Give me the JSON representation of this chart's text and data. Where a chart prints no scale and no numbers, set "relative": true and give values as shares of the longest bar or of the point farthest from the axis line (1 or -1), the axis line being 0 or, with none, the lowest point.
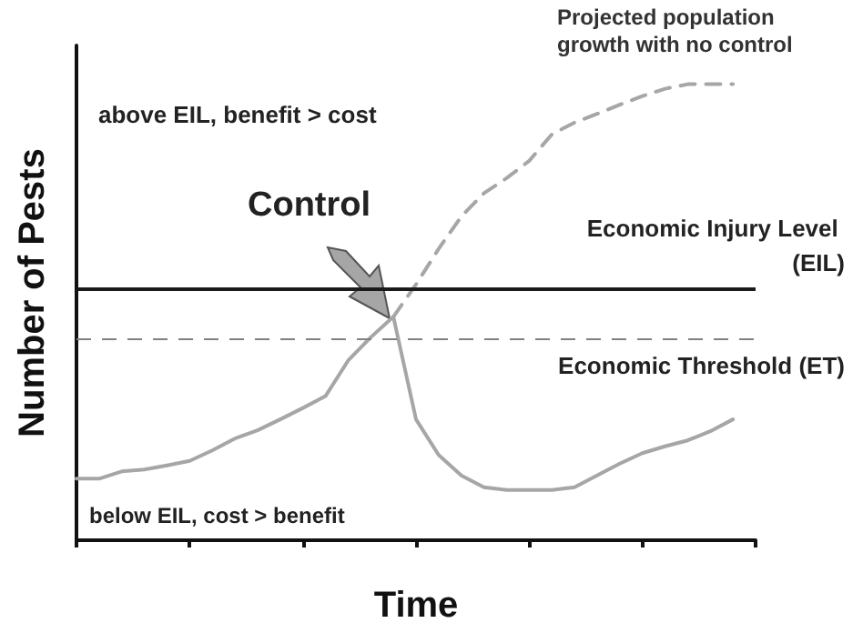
{
  "chart_data": {
    "type": "line",
    "xlabel": "Time",
    "ylabel": "Number of Pests",
    "relative": true,
    "grid": false,
    "marker": "none",
    "categories": [
      null,
      null,
      null,
      null,
      null,
      null,
      null,
      null,
      null,
      null,
      null,
      null,
      null,
      null,
      null,
      null,
      null,
      null,
      null,
      null,
      null,
      null,
      null,
      null,
      null,
      null,
      null,
      null,
      null,
      null,
      null
    ],
    "annotations": [
      "Control",
      "above EIL, benefit > cost",
      "below EIL, cost > benefit",
      "Projected population growth with no control"
    ],
    "series": [
      {
        "color": "#a6a6a6",
        "line_style": "solid",
        "values": [
          0.135,
          0.135,
          0.151,
          0.155,
          0.164,
          0.174,
          0.197,
          0.223,
          0.241,
          0.265,
          0.29,
          0.316,
          0.394,
          0.445,
          0.49,
          0.265,
          0.187,
          0.142,
          0.116,
          0.11,
          0.11,
          0.11,
          0.116,
          0.142,
          0.168,
          0.191,
          0.206,
          0.219,
          0.239,
          0.265,
          null
        ]
      },
      {
        "color": "#a6a6a6",
        "line_style": "dashed",
        "values": [
          null,
          null,
          null,
          null,
          null,
          null,
          null,
          null,
          null,
          null,
          null,
          null,
          null,
          null,
          0.49,
          0.561,
          0.639,
          0.71,
          0.761,
          0.794,
          0.832,
          0.89,
          0.916,
          0.935,
          0.955,
          0.974,
          0.99,
          1.0,
          1.0,
          1.0,
          null
        ]
      }
    ],
    "ref_lines": [
      {
        "axis": "y",
        "value": 0.548,
        "label": "Economic Injury Level (EIL)",
        "color": "#1a1a1a",
        "line_style": "solid"
      },
      {
        "axis": "y",
        "value": 0.436,
        "label": "Economic Threshold (ET)",
        "color": "#808080",
        "line_style": "dashed"
      }
    ]
  }
}
